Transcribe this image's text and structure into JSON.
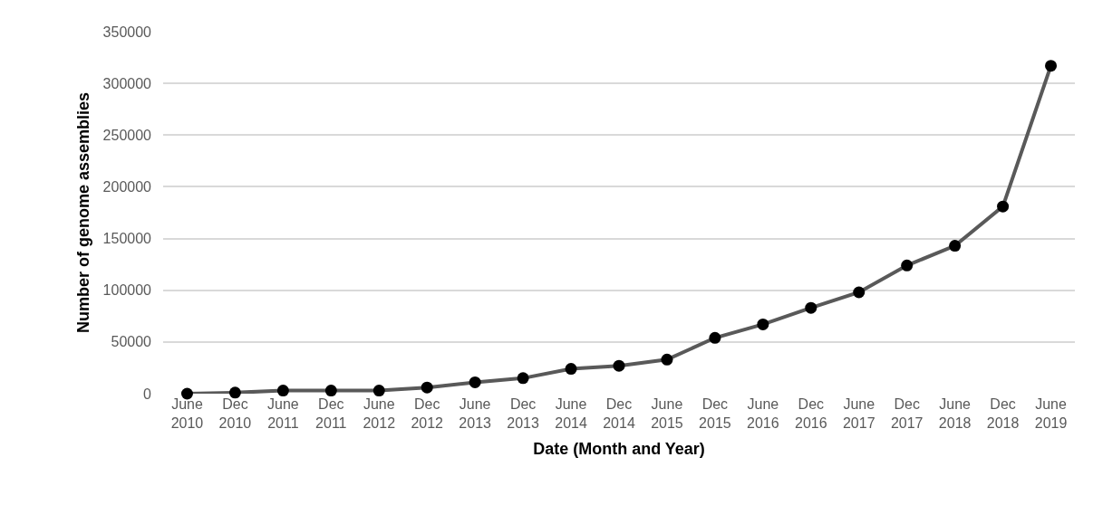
{
  "chart_data": {
    "type": "line",
    "xlabel": "Date (Month and Year)",
    "ylabel": "Number of genome assemblies",
    "categories": [
      "June\n2010",
      "Dec\n2010",
      "June\n2011",
      "Dec\n2011",
      "June\n2012",
      "Dec\n2012",
      "June\n2013",
      "Dec\n2013",
      "June\n2014",
      "Dec\n2014",
      "June\n2015",
      "Dec\n2015",
      "June\n2016",
      "Dec\n2016",
      "June\n2017",
      "Dec\n2017",
      "June\n2018",
      "Dec\n2018",
      "June\n2019"
    ],
    "series": [
      {
        "color": "#595959",
        "values": [
          0,
          1000,
          3000,
          3000,
          3000,
          6000,
          11000,
          15000,
          24000,
          27000,
          33000,
          54000,
          67000,
          83000,
          98000,
          124000,
          143000,
          181000,
          317000
        ]
      }
    ],
    "ylim": [
      0,
      350000
    ],
    "yticks": [
      0,
      50000,
      100000,
      150000,
      200000,
      250000,
      300000,
      350000
    ],
    "grid": "y",
    "marker": "circle",
    "line_style": "solid"
  }
}
